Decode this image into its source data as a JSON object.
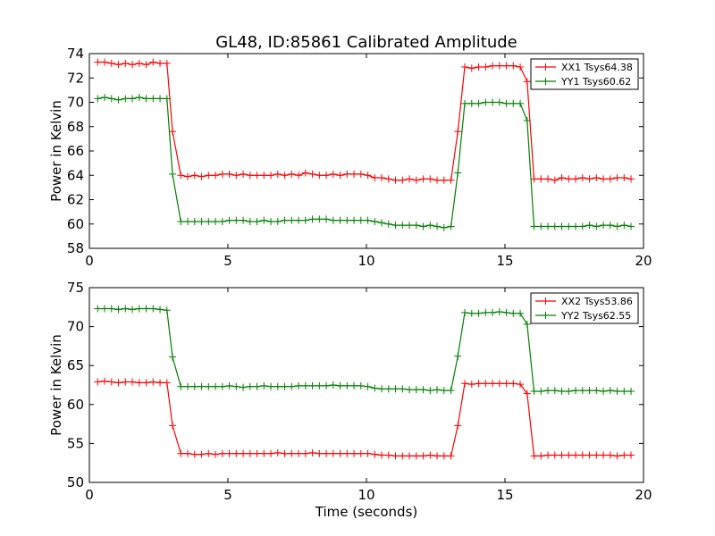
{
  "figure": {
    "title": "GL48, ID:85861 Calibrated Amplitude",
    "xlabel": "Time (seconds)"
  },
  "colors": {
    "red": "#ff0000",
    "green": "#008000"
  },
  "chart_data": [
    {
      "type": "line",
      "title": "GL48, ID:85861 Calibrated Amplitude",
      "xlabel": "",
      "ylabel": "Power in Kelvin",
      "xlim": [
        0,
        20
      ],
      "ylim": [
        58,
        74
      ],
      "xticks": [
        "0",
        "5",
        "10",
        "15",
        "20"
      ],
      "yticks": [
        "58",
        "60",
        "62",
        "64",
        "66",
        "68",
        "70",
        "72",
        "74"
      ],
      "legend_position": "top-right",
      "grid": false,
      "x": [
        0.3,
        0.55,
        0.8,
        1.05,
        1.3,
        1.55,
        1.8,
        2.05,
        2.3,
        2.55,
        2.8,
        3.0,
        3.3,
        3.55,
        3.8,
        4.05,
        4.3,
        4.55,
        4.8,
        5.05,
        5.3,
        5.55,
        5.8,
        6.05,
        6.3,
        6.55,
        6.8,
        7.05,
        7.3,
        7.55,
        7.8,
        8.05,
        8.3,
        8.55,
        8.8,
        9.05,
        9.3,
        9.55,
        9.8,
        10.05,
        10.3,
        10.55,
        10.8,
        11.05,
        11.3,
        11.55,
        11.8,
        12.05,
        12.3,
        12.55,
        12.8,
        13.05,
        13.3,
        13.55,
        13.8,
        14.05,
        14.3,
        14.55,
        14.8,
        15.05,
        15.3,
        15.55,
        15.8,
        16.05,
        16.3,
        16.55,
        16.8,
        17.05,
        17.3,
        17.55,
        17.8,
        18.05,
        18.3,
        18.55,
        18.8,
        19.05,
        19.3,
        19.55
      ],
      "series": [
        {
          "name": "XX1 Tsys64.38",
          "color": "#ff0000",
          "values": [
            73.3,
            73.3,
            73.2,
            73.1,
            73.2,
            73.1,
            73.2,
            73.1,
            73.3,
            73.2,
            73.2,
            67.6,
            64.0,
            63.9,
            64.0,
            63.9,
            64.0,
            64.0,
            64.1,
            64.1,
            64.0,
            64.1,
            64.0,
            64.0,
            64.0,
            64.0,
            64.1,
            64.0,
            64.1,
            64.0,
            64.2,
            64.1,
            64.0,
            64.0,
            64.1,
            64.0,
            64.1,
            64.1,
            64.1,
            64.0,
            63.8,
            63.8,
            63.7,
            63.6,
            63.6,
            63.7,
            63.6,
            63.7,
            63.7,
            63.6,
            63.6,
            63.6,
            67.6,
            72.9,
            72.8,
            72.9,
            72.9,
            73.0,
            73.0,
            73.0,
            73.0,
            72.9,
            71.7,
            63.7,
            63.7,
            63.7,
            63.6,
            63.8,
            63.7,
            63.7,
            63.8,
            63.7,
            63.8,
            63.7,
            63.7,
            63.8,
            63.8,
            63.7
          ]
        },
        {
          "name": "YY1 Tsys60.62",
          "color": "#008000",
          "values": [
            70.3,
            70.4,
            70.3,
            70.2,
            70.3,
            70.3,
            70.4,
            70.3,
            70.3,
            70.3,
            70.3,
            64.1,
            60.2,
            60.2,
            60.2,
            60.2,
            60.2,
            60.2,
            60.2,
            60.3,
            60.3,
            60.3,
            60.2,
            60.2,
            60.3,
            60.2,
            60.2,
            60.3,
            60.3,
            60.3,
            60.3,
            60.4,
            60.4,
            60.4,
            60.3,
            60.3,
            60.3,
            60.3,
            60.3,
            60.3,
            60.2,
            60.1,
            60.0,
            59.9,
            59.9,
            59.9,
            59.9,
            59.8,
            59.9,
            59.8,
            59.7,
            59.8,
            64.2,
            69.9,
            69.9,
            69.9,
            70.0,
            70.0,
            70.0,
            69.9,
            69.9,
            69.9,
            68.5,
            59.8,
            59.8,
            59.8,
            59.8,
            59.8,
            59.8,
            59.8,
            59.8,
            59.9,
            59.8,
            59.9,
            59.9,
            59.8,
            59.9,
            59.8
          ]
        }
      ]
    },
    {
      "type": "line",
      "title": "",
      "xlabel": "Time (seconds)",
      "ylabel": "Power in Kelvin",
      "xlim": [
        0,
        20
      ],
      "ylim": [
        50,
        75
      ],
      "xticks": [
        "0",
        "5",
        "10",
        "15",
        "20"
      ],
      "yticks": [
        "50",
        "55",
        "60",
        "65",
        "70",
        "75"
      ],
      "legend_position": "top-right",
      "grid": false,
      "x": [
        0.3,
        0.55,
        0.8,
        1.05,
        1.3,
        1.55,
        1.8,
        2.05,
        2.3,
        2.55,
        2.8,
        3.0,
        3.3,
        3.55,
        3.8,
        4.05,
        4.3,
        4.55,
        4.8,
        5.05,
        5.3,
        5.55,
        5.8,
        6.05,
        6.3,
        6.55,
        6.8,
        7.05,
        7.3,
        7.55,
        7.8,
        8.05,
        8.3,
        8.55,
        8.8,
        9.05,
        9.3,
        9.55,
        9.8,
        10.05,
        10.3,
        10.55,
        10.8,
        11.05,
        11.3,
        11.55,
        11.8,
        12.05,
        12.3,
        12.55,
        12.8,
        13.05,
        13.3,
        13.55,
        13.8,
        14.05,
        14.3,
        14.55,
        14.8,
        15.05,
        15.3,
        15.55,
        15.8,
        16.05,
        16.3,
        16.55,
        16.8,
        17.05,
        17.3,
        17.55,
        17.8,
        18.05,
        18.3,
        18.55,
        18.8,
        19.05,
        19.3,
        19.55
      ],
      "series": [
        {
          "name": "XX2 Tsys53.86",
          "color": "#ff0000",
          "values": [
            62.9,
            63.0,
            62.9,
            62.8,
            62.9,
            62.9,
            62.8,
            62.8,
            62.9,
            62.8,
            62.8,
            57.3,
            53.7,
            53.7,
            53.6,
            53.6,
            53.7,
            53.6,
            53.7,
            53.7,
            53.7,
            53.7,
            53.7,
            53.7,
            53.7,
            53.7,
            53.8,
            53.7,
            53.7,
            53.7,
            53.7,
            53.8,
            53.7,
            53.7,
            53.7,
            53.7,
            53.7,
            53.7,
            53.7,
            53.7,
            53.6,
            53.5,
            53.5,
            53.4,
            53.4,
            53.4,
            53.4,
            53.4,
            53.5,
            53.4,
            53.4,
            53.4,
            57.3,
            62.7,
            62.6,
            62.7,
            62.7,
            62.7,
            62.7,
            62.7,
            62.7,
            62.6,
            61.4,
            53.4,
            53.4,
            53.5,
            53.5,
            53.5,
            53.5,
            53.5,
            53.5,
            53.5,
            53.5,
            53.5,
            53.5,
            53.4,
            53.5,
            53.5
          ]
        },
        {
          "name": "YY2 Tsys62.55",
          "color": "#008000",
          "values": [
            72.3,
            72.3,
            72.3,
            72.2,
            72.3,
            72.2,
            72.3,
            72.3,
            72.3,
            72.2,
            72.1,
            66.1,
            62.3,
            62.3,
            62.3,
            62.3,
            62.3,
            62.3,
            62.3,
            62.4,
            62.3,
            62.2,
            62.3,
            62.3,
            62.4,
            62.3,
            62.3,
            62.3,
            62.3,
            62.4,
            62.4,
            62.4,
            62.4,
            62.4,
            62.5,
            62.4,
            62.4,
            62.4,
            62.4,
            62.3,
            62.1,
            62.0,
            62.0,
            62.0,
            62.0,
            61.9,
            61.9,
            61.9,
            61.8,
            61.9,
            61.8,
            61.8,
            66.2,
            71.8,
            71.7,
            71.7,
            71.8,
            71.8,
            71.9,
            71.8,
            71.7,
            71.7,
            70.3,
            61.7,
            61.7,
            61.8,
            61.8,
            61.7,
            61.7,
            61.8,
            61.8,
            61.8,
            61.8,
            61.7,
            61.8,
            61.7,
            61.7,
            61.7
          ]
        }
      ]
    }
  ]
}
